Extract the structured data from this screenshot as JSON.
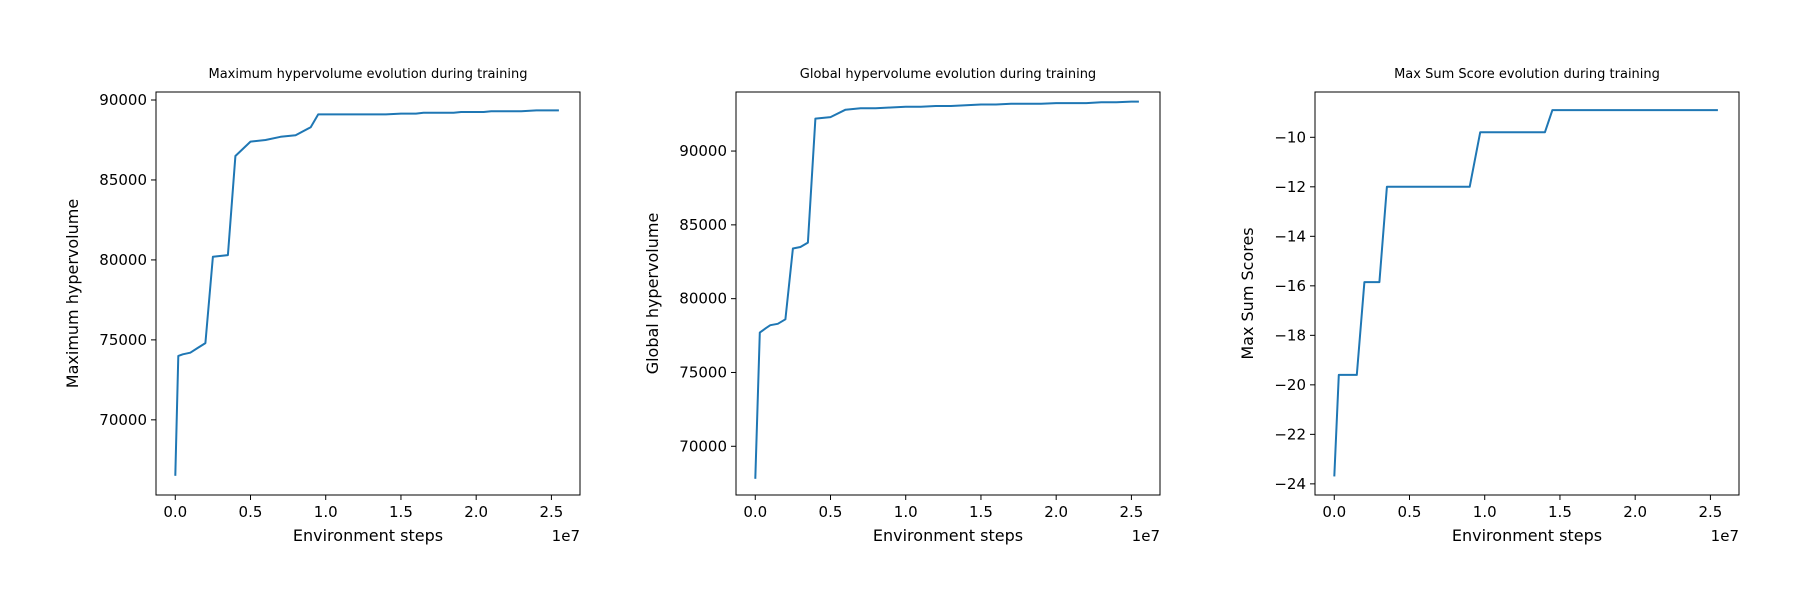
{
  "chart_data": [
    {
      "type": "line",
      "title": "Maximum hypervolume evolution during training",
      "xlabel": "Environment steps",
      "ylabel": "Maximum hypervolume",
      "x_offset_label": "1e7",
      "xlim": [
        -0.128,
        2.69
      ],
      "ylim": [
        65300,
        90500
      ],
      "xticks": [
        0.0,
        0.5,
        1.0,
        1.5,
        2.0,
        2.5
      ],
      "xtick_labels": [
        "0.0",
        "0.5",
        "1.0",
        "1.5",
        "2.0",
        "2.5"
      ],
      "yticks": [
        70000,
        75000,
        80000,
        85000,
        90000
      ],
      "ytick_labels": [
        "70000",
        "75000",
        "80000",
        "85000",
        "90000"
      ],
      "grid": false,
      "series": [
        {
          "x": [
            0.0,
            0.02,
            0.05,
            0.1,
            0.15,
            0.2,
            0.25,
            0.35,
            0.4,
            0.5,
            0.6,
            0.7,
            0.8,
            0.9,
            0.95,
            1.1,
            1.2,
            1.3,
            1.4,
            1.5,
            1.6,
            1.65,
            1.7,
            1.75,
            1.8,
            1.85,
            1.9,
            1.95,
            2.0,
            2.05,
            2.1,
            2.2,
            2.3,
            2.4,
            2.5,
            2.55
          ],
          "y": [
            66500,
            74000,
            74100,
            74200,
            74500,
            74800,
            80200,
            80300,
            86500,
            87400,
            87500,
            87700,
            87800,
            88300,
            89100,
            89100,
            89100,
            89100,
            89100,
            89150,
            89150,
            89200,
            89200,
            89200,
            89200,
            89200,
            89250,
            89250,
            89250,
            89250,
            89300,
            89300,
            89300,
            89350,
            89350,
            89350
          ]
        }
      ]
    },
    {
      "type": "line",
      "title": "Global hypervolume evolution during training",
      "xlabel": "Environment steps",
      "ylabel": "Global hypervolume",
      "x_offset_label": "1e7",
      "xlim": [
        -0.128,
        2.69
      ],
      "ylim": [
        66700,
        94000
      ],
      "xticks": [
        0.0,
        0.5,
        1.0,
        1.5,
        2.0,
        2.5
      ],
      "xtick_labels": [
        "0.0",
        "0.5",
        "1.0",
        "1.5",
        "2.0",
        "2.5"
      ],
      "yticks": [
        70000,
        75000,
        80000,
        85000,
        90000
      ],
      "ytick_labels": [
        "70000",
        "75000",
        "80000",
        "85000",
        "90000"
      ],
      "grid": false,
      "series": [
        {
          "x": [
            0.0,
            0.03,
            0.07,
            0.1,
            0.15,
            0.2,
            0.25,
            0.3,
            0.35,
            0.4,
            0.5,
            0.6,
            0.7,
            0.8,
            0.9,
            1.0,
            1.1,
            1.2,
            1.3,
            1.4,
            1.5,
            1.6,
            1.7,
            1.8,
            1.9,
            2.0,
            2.1,
            2.2,
            2.3,
            2.4,
            2.5,
            2.55
          ],
          "y": [
            67800,
            77700,
            78000,
            78200,
            78300,
            78600,
            83400,
            83500,
            83800,
            92200,
            92300,
            92800,
            92900,
            92900,
            92950,
            93000,
            93000,
            93050,
            93050,
            93100,
            93150,
            93150,
            93200,
            93200,
            93200,
            93250,
            93250,
            93250,
            93300,
            93300,
            93350,
            93350
          ]
        }
      ]
    },
    {
      "type": "line",
      "title": "Max Sum Score evolution during training",
      "xlabel": "Environment steps",
      "ylabel": "Max Sum Scores",
      "x_offset_label": "1e7",
      "xlim": [
        -0.128,
        2.69
      ],
      "ylim": [
        -24.45,
        -8.17
      ],
      "xticks": [
        0.0,
        0.5,
        1.0,
        1.5,
        2.0,
        2.5
      ],
      "xtick_labels": [
        "0.0",
        "0.5",
        "1.0",
        "1.5",
        "2.0",
        "2.5"
      ],
      "yticks": [
        -24,
        -22,
        -20,
        -18,
        -16,
        -14,
        -12,
        -10
      ],
      "ytick_labels": [
        "−24",
        "−22",
        "−20",
        "−18",
        "−16",
        "−14",
        "−12",
        "−10"
      ],
      "grid": false,
      "series": [
        {
          "x": [
            0.0,
            0.03,
            0.07,
            0.1,
            0.15,
            0.2,
            0.25,
            0.3,
            0.35,
            0.4,
            0.5,
            0.6,
            0.7,
            0.8,
            0.9,
            0.97,
            1.0,
            1.1,
            1.2,
            1.3,
            1.4,
            1.45,
            1.5,
            1.6,
            1.8,
            2.0,
            2.2,
            2.4,
            2.55
          ],
          "y": [
            -23.7,
            -19.6,
            -19.6,
            -19.6,
            -19.6,
            -15.85,
            -15.85,
            -15.85,
            -12.0,
            -12.0,
            -12.0,
            -12.0,
            -12.0,
            -12.0,
            -12.0,
            -9.8,
            -9.8,
            -9.8,
            -9.8,
            -9.8,
            -9.8,
            -8.9,
            -8.9,
            -8.9,
            -8.9,
            -8.9,
            -8.9,
            -8.9,
            -8.9
          ]
        }
      ]
    }
  ]
}
